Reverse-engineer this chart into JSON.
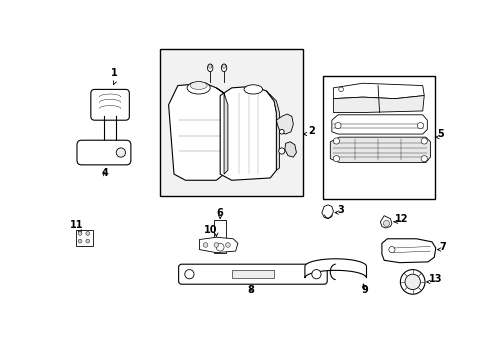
{
  "bg_color": "#ffffff",
  "line_color": "#000000",
  "box_fill": "#f0f0f0",
  "part_fill": "#ffffff",
  "shadow_fill": "#e8e8e8"
}
